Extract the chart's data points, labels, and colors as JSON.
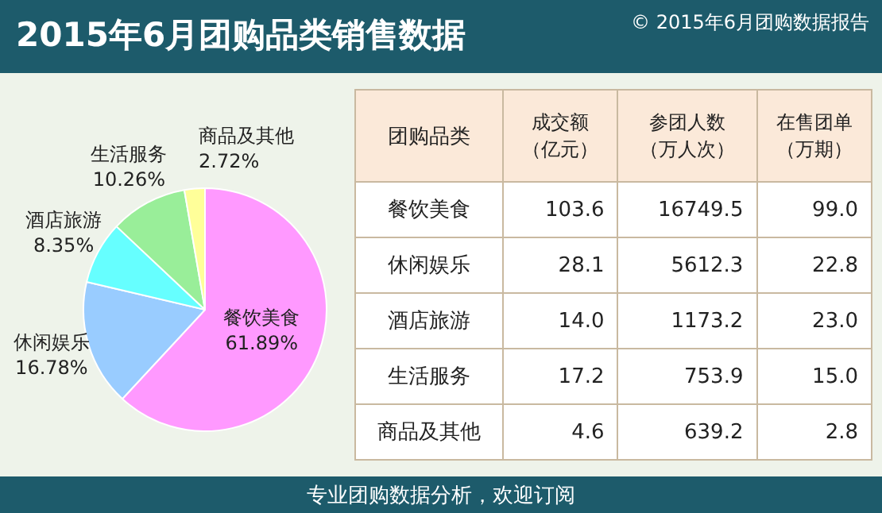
{
  "chart_data": [
    {
      "type": "pie",
      "title": "2015年6月团购品类销售数据",
      "categories": [
        "餐饮美食",
        "休闲娱乐",
        "酒店旅游",
        "生活服务",
        "商品及其他"
      ],
      "values": [
        61.89,
        16.78,
        8.35,
        10.26,
        2.72
      ],
      "colors": [
        "#ff99ff",
        "#99ccff",
        "#66ffff",
        "#99ee99",
        "#ffff99"
      ],
      "value_labels": [
        "61.89%",
        "16.78%",
        "8.35%",
        "10.26%",
        "2.72%"
      ],
      "annotations": [
        "© 2015年6月团购数据报告",
        "专业团购数据分析，欢迎订阅"
      ]
    },
    {
      "type": "other",
      "xlabel": "团购品类",
      "categories": [
        "餐饮美食",
        "休闲娱乐",
        "酒店旅游",
        "生活服务",
        "商品及其他"
      ],
      "series": [
        {
          "name": "成交额（亿元）",
          "values": [
            103.6,
            28.1,
            14.0,
            17.2,
            4.6
          ],
          "value_labels": [
            "103.6",
            "28.1",
            "14.0",
            "17.2",
            "4.6"
          ]
        },
        {
          "name": "参团人数（万人次）",
          "values": [
            16749.5,
            5612.3,
            1173.2,
            753.9,
            639.2
          ],
          "value_labels": [
            "16749.5",
            "5612.3",
            "1173.2",
            "753.9",
            "639.2"
          ]
        },
        {
          "name": "在售团单（万期）",
          "values": [
            99.0,
            22.8,
            23.0,
            15.0,
            2.8
          ],
          "value_labels": [
            "99.0",
            "22.8",
            "23.0",
            "15.0",
            "2.8"
          ]
        }
      ]
    }
  ]
}
